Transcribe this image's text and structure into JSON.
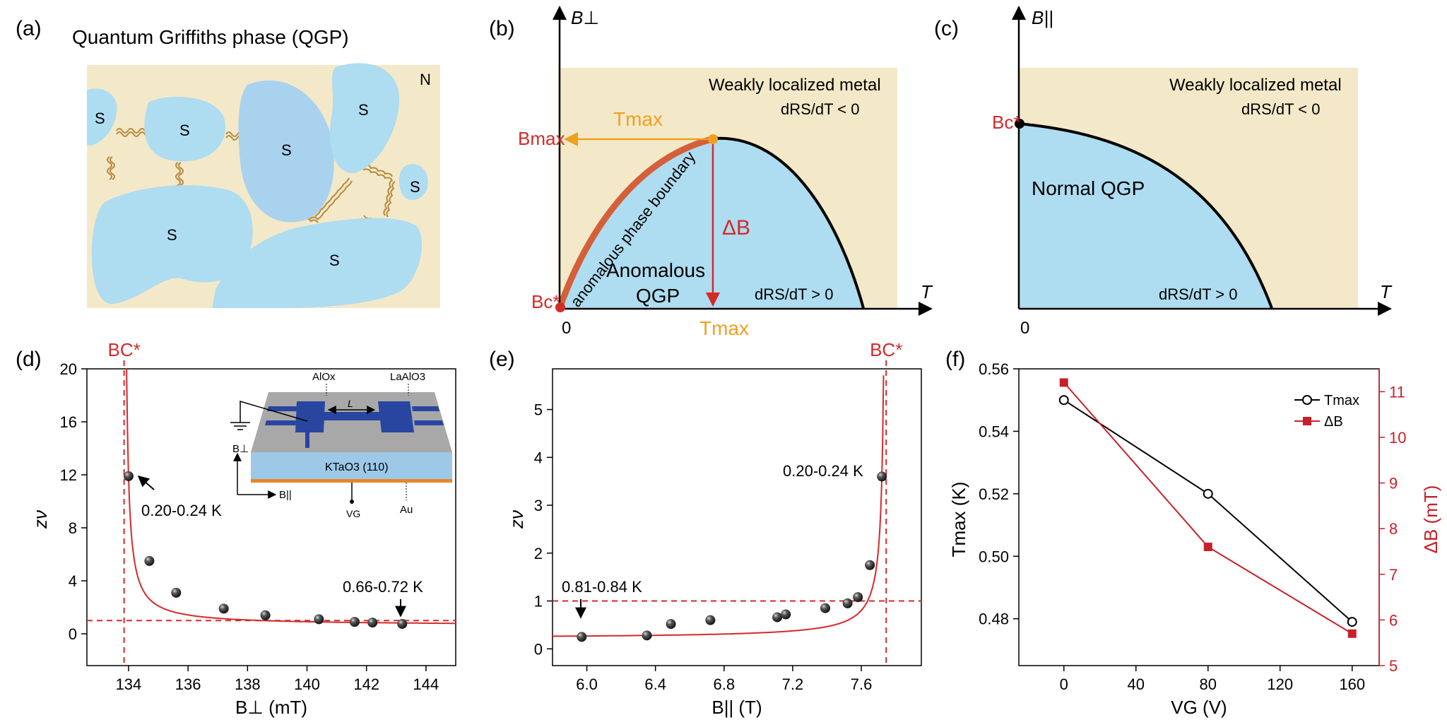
{
  "panels": {
    "a": {
      "label": "(a)",
      "title": "Quantum Griffiths phase (QGP)",
      "normal_label": "N",
      "island_label": "S",
      "colors": {
        "background": "#f3e9c8",
        "island": "#aedcf0",
        "island_alt": "#a9d2ee",
        "junction": "#b7893f"
      }
    },
    "b": {
      "label": "(b)",
      "yaxis": "B⊥",
      "xaxis": "T",
      "origin": "0",
      "region_metal": "Weakly localized metal",
      "metal_condition": "dRS/dT < 0",
      "region_qgp_1": "Anomalous",
      "region_qgp_2": "QGP",
      "qgp_condition": "dRS/dT > 0",
      "boundary_label": "anomalous phase boundary",
      "bmax_label": "Bmax",
      "tmax_label": "Tmax",
      "deltab_label": "ΔB",
      "bc_label": "Bc*",
      "colors": {
        "metal": "#f3e9c8",
        "qgp": "#aedcf0",
        "boundary": "#d4603a",
        "tmax": "#f0a020",
        "red": "#d42a2a"
      }
    },
    "c": {
      "label": "(c)",
      "yaxis": "B||",
      "xaxis": "T",
      "origin": "0",
      "region_metal": "Weakly localized metal",
      "metal_condition": "dRS/dT < 0",
      "region_qgp": "Normal QGP",
      "qgp_condition": "dRS/dT > 0",
      "bc_label": "Bc*"
    },
    "d": {
      "label": "(d)"
    },
    "e": {
      "label": "(e)"
    },
    "f": {
      "label": "(f)"
    }
  },
  "chart_data": [
    {
      "type": "scatter",
      "panel": "d",
      "xlabel": "B⊥ (mT)",
      "ylabel": "zν",
      "xlim": [
        132.6,
        145
      ],
      "ylim": [
        -2.4,
        20
      ],
      "xticks": [
        134,
        136,
        138,
        140,
        142,
        144
      ],
      "yticks": [
        0,
        4,
        8,
        12,
        16,
        20
      ],
      "points": [
        [
          134.0,
          11.9
        ],
        [
          134.7,
          5.5
        ],
        [
          135.6,
          3.1
        ],
        [
          137.2,
          1.9
        ],
        [
          138.6,
          1.4
        ],
        [
          140.4,
          1.1
        ],
        [
          141.6,
          0.9
        ],
        [
          142.2,
          0.85
        ],
        [
          143.2,
          0.75
        ]
      ],
      "fit_curve": {
        "type": "power-law",
        "divergence": 133.85
      },
      "critical_line_label": "BC*",
      "critical_x": 133.85,
      "reference_y": 1.0,
      "annotations": {
        "high": "0.20-0.24 K",
        "low": "0.66-0.72 K"
      },
      "inset": {
        "AlOx": "AlOx",
        "LaAlO3": "LaAlO3",
        "length": "L",
        "substrate": "KTaO3 (110)",
        "Bperp": "B⊥",
        "Bpar": "B||",
        "gate": "VG",
        "electrode": "Au"
      }
    },
    {
      "type": "scatter",
      "panel": "e",
      "xlabel": "B|| (T)",
      "ylabel": "zν",
      "xlim": [
        5.8,
        7.95
      ],
      "ylim": [
        -0.35,
        5.85
      ],
      "xticks": [
        6.0,
        6.4,
        6.8,
        7.2,
        7.6
      ],
      "yticks": [
        0,
        1,
        2,
        3,
        4,
        5
      ],
      "points": [
        [
          5.97,
          0.25
        ],
        [
          6.35,
          0.28
        ],
        [
          6.49,
          0.52
        ],
        [
          6.72,
          0.6
        ],
        [
          7.11,
          0.66
        ],
        [
          7.16,
          0.72
        ],
        [
          7.39,
          0.85
        ],
        [
          7.52,
          0.95
        ],
        [
          7.58,
          1.08
        ],
        [
          7.65,
          1.75
        ],
        [
          7.72,
          3.6
        ]
      ],
      "fit_curve": {
        "type": "power-law",
        "divergence": 7.745
      },
      "critical_line_label": "BC*",
      "critical_x": 7.745,
      "reference_y": 1.0,
      "annotations": {
        "high": "0.20-0.24 K",
        "low": "0.81-0.84 K"
      }
    },
    {
      "type": "line",
      "panel": "f",
      "xlabel": "VG (V)",
      "ylabel_left": "Tmax (K)",
      "ylabel_right": "ΔB (mT)",
      "xlim": [
        -25,
        175
      ],
      "ylim_left": [
        0.465,
        0.56
      ],
      "ylim_right": [
        5,
        11.5
      ],
      "xticks": [
        0,
        40,
        80,
        120,
        160
      ],
      "yticks_left": [
        0.48,
        0.5,
        0.52,
        0.54,
        0.56
      ],
      "yticks_right": [
        5,
        6,
        7,
        8,
        9,
        10,
        11
      ],
      "x": [
        0,
        80,
        160
      ],
      "series": [
        {
          "name": "Tmax",
          "axis": "left",
          "values": [
            0.55,
            0.52,
            0.479
          ],
          "color": "#000000",
          "marker": "open-circle"
        },
        {
          "name": "ΔB",
          "axis": "right",
          "values": [
            11.2,
            7.6,
            5.7
          ],
          "color": "#c8202a",
          "marker": "square"
        }
      ],
      "legend": "top-right"
    }
  ]
}
